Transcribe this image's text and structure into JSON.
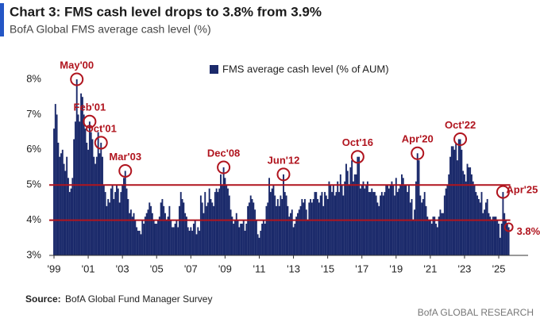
{
  "chart_data": {
    "type": "bar",
    "title": "Chart 3: FMS cash level drops to 3.8% from 3.9%",
    "subtitle": "BofA Global FMS average cash level (%)",
    "series": [
      {
        "name": "FMS average cash level (% of AUM)",
        "color": "#1b2a6b",
        "values": [
          6.6,
          7.3,
          7.0,
          6.2,
          5.8,
          5.9,
          6.0,
          5.6,
          5.4,
          5.8,
          5.2,
          4.8,
          4.9,
          5.2,
          6.3,
          6.8,
          8.0,
          7.0,
          6.8,
          7.6,
          7.5,
          7.0,
          6.6,
          6.2,
          6.0,
          6.8,
          6.5,
          6.3,
          5.8,
          5.6,
          5.8,
          6.5,
          5.9,
          6.2,
          5.8,
          5.0,
          4.8,
          4.4,
          4.6,
          4.5,
          4.9,
          5.0,
          4.6,
          4.8,
          5.0,
          4.9,
          4.5,
          4.8,
          5.0,
          5.2,
          5.4,
          4.9,
          4.6,
          4.2,
          4.3,
          4.1,
          4.2,
          4.0,
          3.8,
          3.7,
          3.7,
          3.6,
          4.0,
          3.9,
          4.1,
          4.2,
          4.3,
          4.5,
          4.4,
          4.2,
          4.0,
          3.9,
          3.9,
          4.0,
          4.1,
          4.5,
          4.6,
          4.4,
          4.2,
          4.0,
          4.1,
          4.4,
          4.0,
          3.8,
          3.8,
          3.9,
          4.0,
          3.8,
          4.4,
          4.8,
          4.6,
          4.5,
          4.2,
          4.1,
          3.8,
          3.7,
          3.8,
          3.7,
          3.9,
          4.0,
          3.6,
          3.8,
          3.7,
          4.7,
          4.5,
          4.2,
          4.8,
          4.4,
          4.5,
          4.9,
          4.6,
          4.5,
          4.4,
          4.8,
          4.9,
          4.8,
          4.9,
          5.3,
          5.0,
          5.5,
          5.2,
          5.0,
          4.9,
          4.7,
          4.3,
          4.1,
          3.9,
          4.0,
          4.2,
          4.0,
          3.8,
          3.9,
          3.9,
          4.0,
          3.7,
          3.9,
          4.4,
          4.5,
          4.7,
          4.6,
          4.5,
          4.3,
          4.0,
          3.6,
          3.5,
          3.7,
          3.9,
          4.0,
          3.9,
          4.4,
          4.5,
          5.2,
          4.8,
          4.9,
          5.0,
          4.7,
          4.4,
          4.6,
          4.4,
          4.7,
          4.6,
          5.3,
          4.8,
          4.7,
          4.4,
          4.1,
          4.2,
          4.3,
          3.8,
          3.9,
          4.1,
          4.2,
          4.3,
          4.4,
          4.6,
          4.5,
          4.6,
          4.3,
          4.0,
          4.5,
          4.6,
          4.5,
          4.6,
          4.8,
          4.8,
          4.6,
          4.5,
          4.7,
          4.8,
          4.4,
          4.8,
          4.7,
          4.6,
          5.1,
          5.0,
          4.8,
          5.0,
          4.7,
          4.8,
          5.1,
          4.8,
          5.3,
          5.0,
          4.7,
          5.1,
          5.6,
          5.4,
          5.0,
          5.5,
          5.7,
          5.1,
          5.3,
          5.3,
          5.8,
          5.8,
          4.9,
          5.0,
          5.1,
          4.9,
          5.0,
          5.1,
          4.8,
          4.8,
          4.9,
          4.8,
          4.8,
          4.7,
          4.5,
          4.4,
          4.7,
          4.8,
          4.7,
          4.8,
          5.0,
          5.0,
          4.9,
          5.0,
          5.1,
          5.0,
          4.7,
          5.2,
          4.8,
          4.9,
          5.0,
          5.3,
          5.2,
          5.0,
          5.0,
          4.8,
          5.0,
          4.5,
          4.6,
          4.0,
          4.3,
          5.1,
          5.9,
          5.7,
          4.7,
          4.5,
          4.6,
          4.8,
          4.4,
          4.1,
          4.0,
          4.0,
          3.9,
          4.1,
          4.1,
          3.9,
          3.8,
          4.1,
          4.3,
          4.2,
          4.2,
          4.7,
          4.9,
          5.0,
          5.3,
          5.8,
          6.1,
          6.1,
          6.0,
          6.2,
          5.7,
          6.3,
          6.3,
          6.0,
          5.4,
          5.3,
          5.1,
          5.6,
          5.5,
          5.5,
          5.3,
          5.1,
          5.0,
          4.8,
          4.7,
          4.6,
          4.5,
          4.8,
          4.2,
          4.3,
          4.5,
          4.6,
          4.2,
          4.1,
          4.0,
          4.1,
          4.1,
          4.1,
          4.0,
          3.9,
          3.5,
          3.9,
          4.8,
          4.2,
          4.0,
          3.9,
          3.8
        ]
      }
    ],
    "categories": [
      "'99",
      null,
      null,
      null,
      null,
      null,
      null,
      null,
      null,
      null,
      null,
      null,
      null,
      null,
      null,
      null,
      null,
      null,
      null,
      null,
      null,
      null,
      null,
      null,
      "'01",
      null,
      null,
      null,
      null,
      null,
      null,
      null,
      null,
      null,
      null,
      null,
      null,
      null,
      null,
      null,
      null,
      null,
      null,
      null,
      null,
      null,
      null,
      null,
      "'03",
      null,
      null,
      null,
      null,
      null,
      null,
      null,
      null,
      null,
      null,
      null,
      null,
      null,
      null,
      null,
      null,
      null,
      null,
      null,
      null,
      null,
      null,
      null,
      "'05",
      null,
      null,
      null,
      null,
      null,
      null,
      null,
      null,
      null,
      null,
      null,
      null,
      null,
      null,
      null,
      null,
      null,
      null,
      null,
      null,
      null,
      null,
      null,
      "'07",
      null,
      null,
      null,
      null,
      null,
      null,
      null,
      null,
      null,
      null,
      null,
      null,
      null,
      null,
      null,
      null,
      null,
      null,
      null,
      null,
      null,
      null,
      null,
      "'09",
      null,
      null,
      null,
      null,
      null,
      null,
      null,
      null,
      null,
      null,
      null,
      null,
      null,
      null,
      null,
      null,
      null,
      null,
      null,
      null,
      null,
      null,
      null,
      "'11",
      null,
      null,
      null,
      null,
      null,
      null,
      null,
      null,
      null,
      null,
      null,
      null,
      null,
      null,
      null,
      null,
      null,
      null,
      null,
      null,
      null,
      null,
      null,
      "'13",
      null,
      null,
      null,
      null,
      null,
      null,
      null,
      null,
      null,
      null,
      null,
      null,
      null,
      null,
      null,
      null,
      null,
      null,
      null,
      null,
      null,
      null,
      null,
      "'15",
      null,
      null,
      null,
      null,
      null,
      null,
      null,
      null,
      null,
      null,
      null,
      null,
      null,
      null,
      null,
      null,
      null,
      null,
      null,
      null,
      null,
      null,
      null,
      "'17",
      null,
      null,
      null,
      null,
      null,
      null,
      null,
      null,
      null,
      null,
      null,
      null,
      null,
      null,
      null,
      null,
      null,
      null,
      null,
      null,
      null,
      null,
      null,
      "'19",
      null,
      null,
      null,
      null,
      null,
      null,
      null,
      null,
      null,
      null,
      null,
      null,
      null,
      null,
      null,
      null,
      null,
      null,
      null,
      null,
      null,
      null,
      null,
      "'21",
      null,
      null,
      null,
      null,
      null,
      null,
      null,
      null,
      null,
      null,
      null,
      null,
      null,
      null,
      null,
      null,
      null,
      null,
      null,
      null,
      null,
      null,
      null,
      "'23",
      null,
      null,
      null,
      null,
      null,
      null,
      null,
      null,
      null,
      null,
      null,
      null,
      null,
      null,
      null,
      null,
      null,
      null,
      null,
      null,
      null,
      null,
      null,
      "'25",
      null,
      null,
      null,
      null,
      null,
      null,
      null
    ],
    "ylim": [
      3,
      8.3
    ],
    "yticks": [
      {
        "value": 3,
        "label": "3%"
      },
      {
        "value": 4,
        "label": "4%"
      },
      {
        "value": 5,
        "label": "5%"
      },
      {
        "value": 6,
        "label": "6%"
      },
      {
        "value": 7,
        "label": "7%"
      },
      {
        "value": 8,
        "label": "8%"
      }
    ],
    "reference_lines": [
      5,
      4
    ],
    "reference_color": "#b0141e",
    "annotations": [
      "May'00",
      "Feb'01",
      "Oct'01",
      "Mar'03",
      "Dec'08",
      "Jun'12",
      "Oct'16",
      "Apr'20",
      "Oct'22",
      "Apr'25",
      "3.8%"
    ],
    "grid": false,
    "source_label": "Source:",
    "source": "BofA Global Fund Manager Survey",
    "footer": "BofA GLOBAL RESEARCH"
  }
}
